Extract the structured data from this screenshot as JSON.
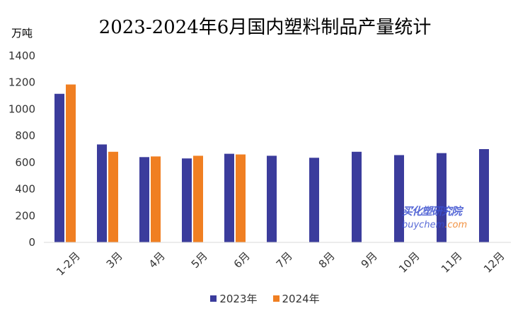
{
  "chart_data": {
    "type": "bar",
    "title": "2023-2024年6月国内塑料制品产量统计",
    "ylabel": "万吨",
    "xlabel": "",
    "ylim": [
      0,
      1400
    ],
    "yticks": [
      0,
      200,
      400,
      600,
      800,
      1000,
      1200,
      1400
    ],
    "grid": false,
    "legend_position": "bottom",
    "categories": [
      "1-2月",
      "3月",
      "4月",
      "5月",
      "6月",
      "7月",
      "8月",
      "9月",
      "10月",
      "11月",
      "12月"
    ],
    "series": [
      {
        "name": "2023年",
        "color": "#3b3c9c",
        "values": [
          1115,
          735,
          640,
          630,
          665,
          650,
          635,
          680,
          655,
          670,
          700
        ]
      },
      {
        "name": "2024年",
        "color": "#f07f22",
        "values": [
          1185,
          680,
          645,
          650,
          660,
          null,
          null,
          null,
          null,
          null,
          null
        ]
      }
    ]
  },
  "watermark": {
    "cn": "买化塑研究院",
    "en_main": "buychem",
    "en_suffix": ".com"
  }
}
